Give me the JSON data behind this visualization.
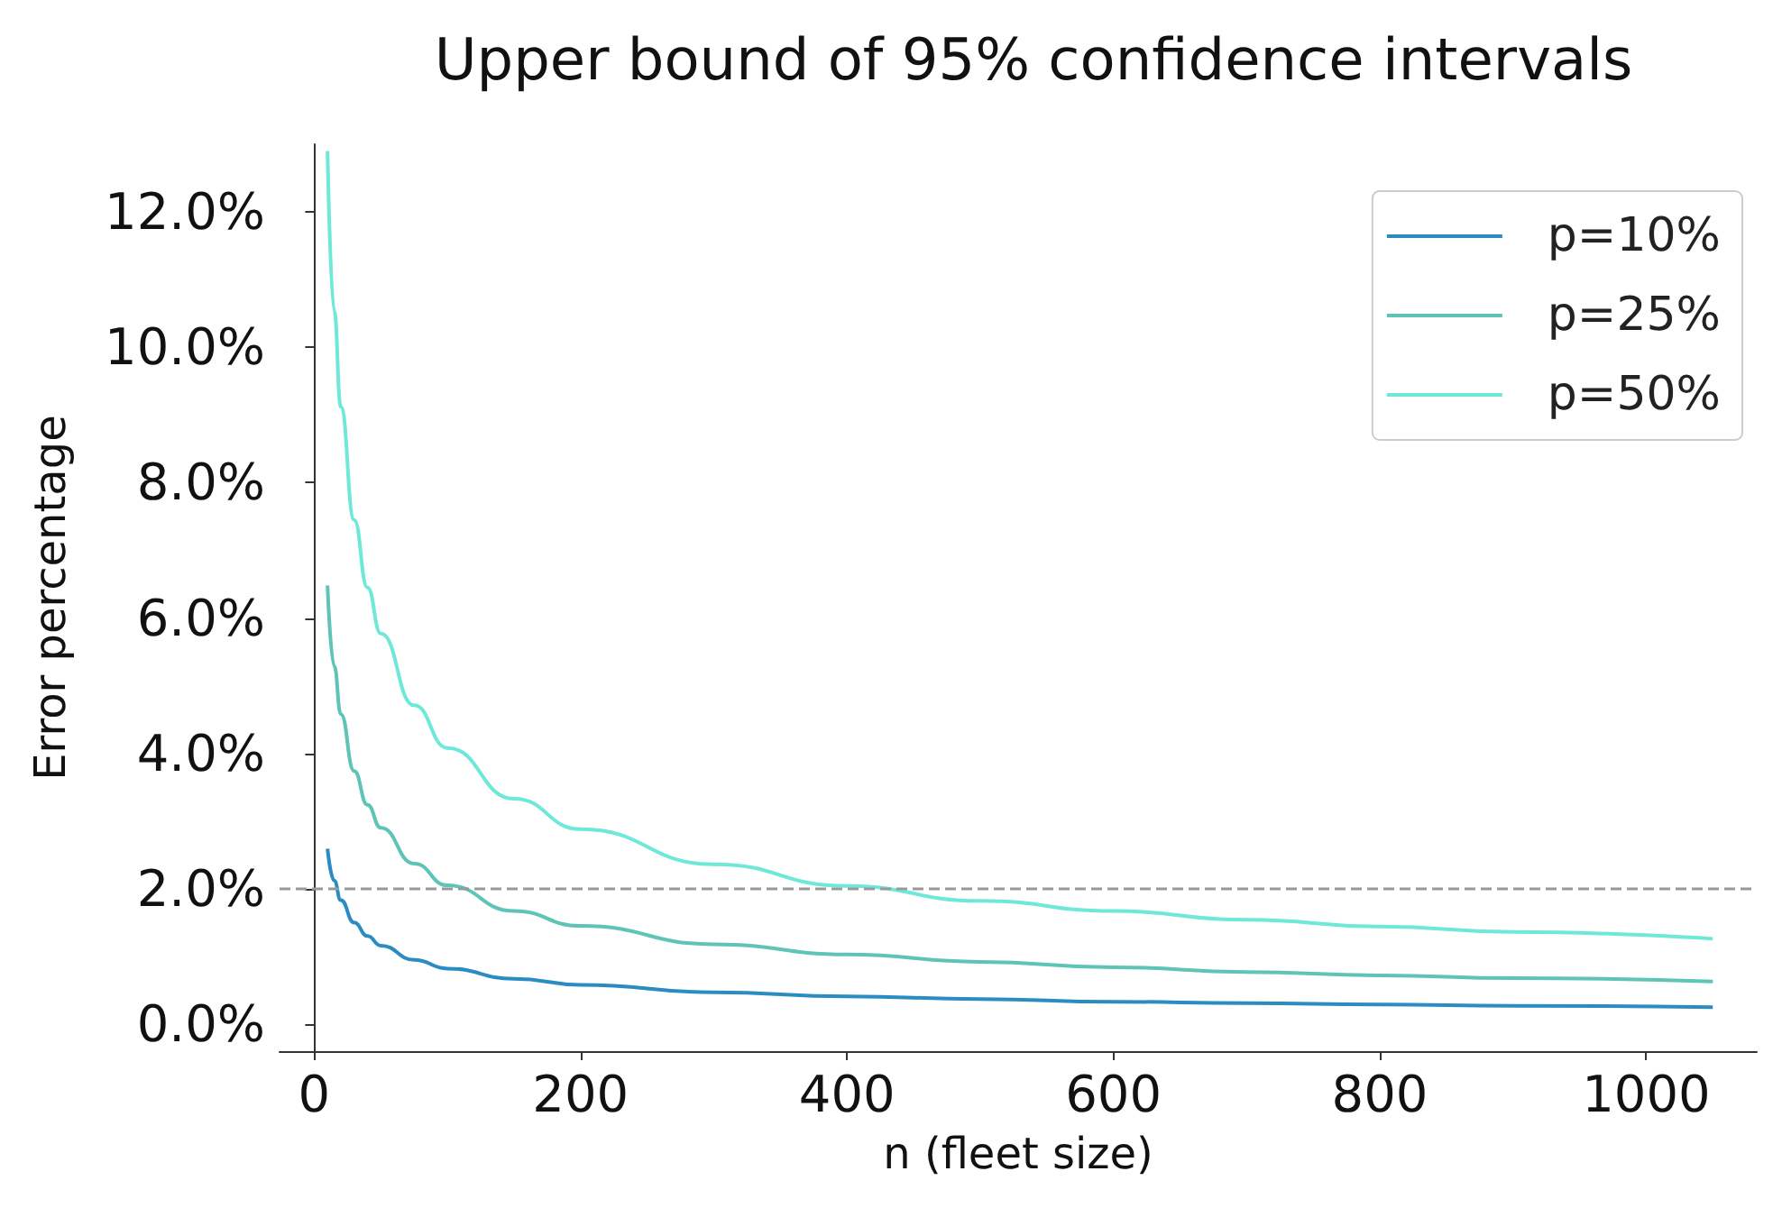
{
  "chart_data": {
    "type": "line",
    "title": "Upper bound of 95% confidence intervals",
    "xlabel": "n (fleet size)",
    "ylabel": "Error percentage",
    "x": [
      10,
      15,
      20,
      30,
      40,
      50,
      75,
      100,
      150,
      200,
      300,
      400,
      500,
      600,
      700,
      800,
      900,
      1050
    ],
    "series": [
      {
        "name": "p=10%",
        "color": "#2b8cc4",
        "values": [
          2.59,
          2.12,
          1.83,
          1.5,
          1.3,
          1.16,
          0.95,
          0.82,
          0.67,
          0.58,
          0.47,
          0.41,
          0.37,
          0.33,
          0.31,
          0.29,
          0.27,
          0.25
        ]
      },
      {
        "name": "p=25%",
        "color": "#5ec4b6",
        "values": [
          6.48,
          5.29,
          4.58,
          3.74,
          3.24,
          2.9,
          2.37,
          2.05,
          1.67,
          1.45,
          1.18,
          1.03,
          0.92,
          0.84,
          0.77,
          0.72,
          0.68,
          0.63
        ]
      },
      {
        "name": "p=50%",
        "color": "#6ee8d8",
        "values": [
          12.9,
          10.53,
          9.12,
          7.45,
          6.45,
          5.77,
          4.71,
          4.08,
          3.33,
          2.88,
          2.36,
          2.04,
          1.82,
          1.67,
          1.54,
          1.44,
          1.36,
          1.26
        ]
      }
    ],
    "xlim": [
      -26,
      1083
    ],
    "xticks": [
      0,
      200,
      400,
      600,
      800,
      1000
    ],
    "ylim": [
      -0.4,
      13
    ],
    "yticks": [
      {
        "value": 0,
        "label": "0.0%"
      },
      {
        "value": 2,
        "label": "2.0%"
      },
      {
        "value": 4,
        "label": "4.0%"
      },
      {
        "value": 6,
        "label": "6.0%"
      },
      {
        "value": 8,
        "label": "8.0%"
      },
      {
        "value": 10,
        "label": "10.0%"
      },
      {
        "value": 12,
        "label": "12.0%"
      }
    ],
    "ref_lines": [
      {
        "axis": "y",
        "value": 2,
        "color": "#999999",
        "line_style": "dashed"
      }
    ],
    "legend": "top right",
    "grid": false,
    "marker": "none",
    "line_style": "solid"
  }
}
